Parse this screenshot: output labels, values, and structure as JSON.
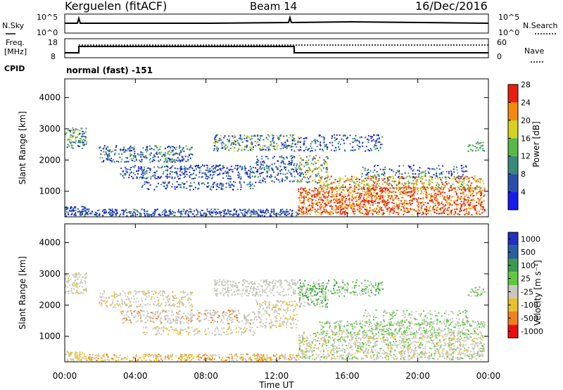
{
  "header": {
    "station": "Kerguelen (fitACF)",
    "beam": "Beam 14",
    "date": "16/Dec/2016"
  },
  "noise_panel": {
    "left_label": "N.Sky",
    "right_label": "N.Search",
    "left_ticks": [
      "10^5",
      "10^0"
    ],
    "right_ticks": [
      "10^5",
      "10^0"
    ]
  },
  "freq_panel": {
    "left_label_1": "Freq.",
    "left_label_2": "[MHz]",
    "right_label": "Nave",
    "left_ticks": [
      "18",
      "8"
    ],
    "right_ticks": [
      "60",
      "0"
    ]
  },
  "cpid": {
    "label": "CPID",
    "text": "normal (fast) -151"
  },
  "chart_data": [
    {
      "type": "heatmap",
      "name": "power",
      "ylabel": "Slant Range [km]",
      "ylim": [
        180,
        4600
      ],
      "yticks": [
        "1000",
        "2000",
        "3000",
        "4000"
      ],
      "colorbar_label": "Power [dB]",
      "colorbar_ticks": [
        "4",
        "8",
        "12",
        "16",
        "20",
        "24",
        "28"
      ],
      "colors": [
        "#1a1aee",
        "#2a4fa8",
        "#3a8a7a",
        "#58b848",
        "#d8d020",
        "#f08a10",
        "#e82010"
      ]
    },
    {
      "type": "heatmap",
      "name": "velocity",
      "ylabel": "Slant Range [km]",
      "ylim": [
        180,
        4600
      ],
      "yticks": [
        "1000",
        "2000",
        "3000",
        "4000"
      ],
      "colorbar_label": "Velocity [m s⁻¹]",
      "colorbar_ticks": [
        "1000",
        "500",
        "100",
        "25",
        "-25",
        "-100",
        "-500",
        "-1000"
      ],
      "colors": [
        "#2030c0",
        "#2a60a0",
        "#3a9a50",
        "#60c840",
        "#c8c8c0",
        "#e8c030",
        "#f08020",
        "#e81010"
      ]
    }
  ],
  "x_axis": {
    "label": "Time UT",
    "ticks": [
      "00:00",
      "04:00",
      "08:00",
      "12:00",
      "16:00",
      "20:00",
      "00:00"
    ]
  }
}
